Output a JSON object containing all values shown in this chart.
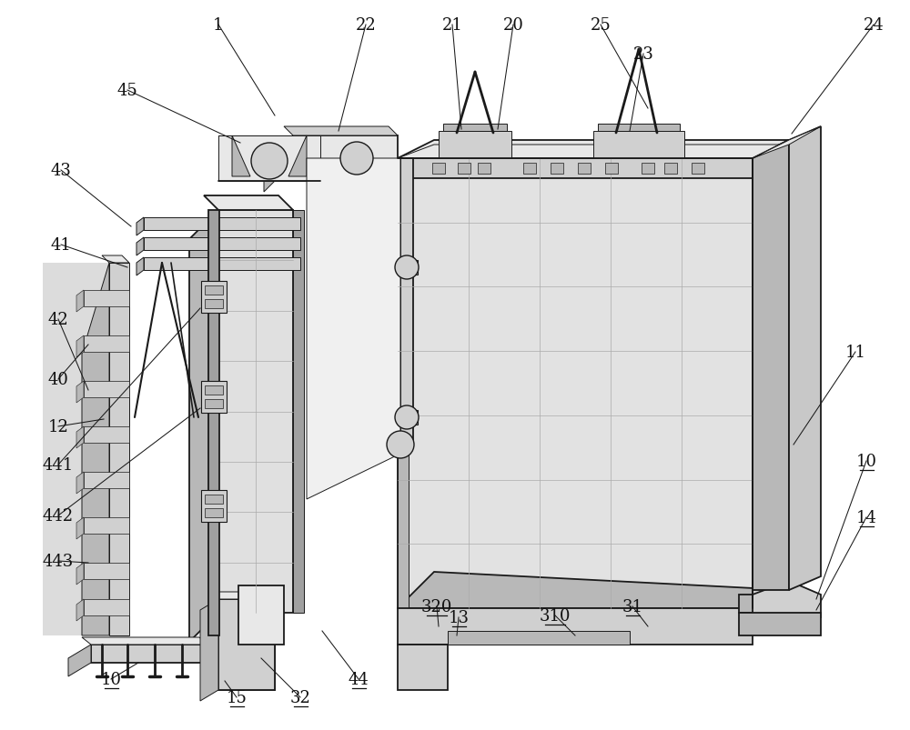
{
  "bg_color": "#ffffff",
  "lc": "#1a1a1a",
  "lc_thin": "#555555",
  "fc_light": "#e8e8e8",
  "fc_mid": "#d0d0d0",
  "fc_dark": "#b8b8b8",
  "fc_vdark": "#a0a0a0",
  "lw_main": 1.3,
  "lw_thin": 0.7,
  "lw_label": 0.8,
  "label_fs": 13,
  "label_color": "#111111"
}
